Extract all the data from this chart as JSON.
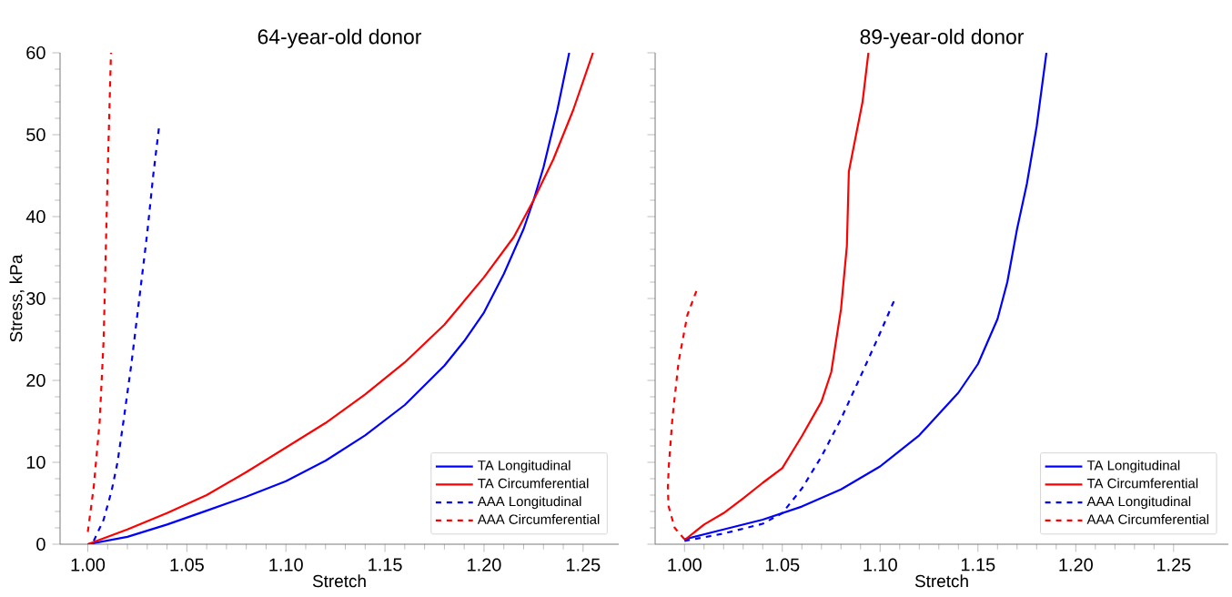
{
  "chart_data": [
    {
      "type": "line",
      "title": "64-year-old donor",
      "xlabel": "Stretch",
      "ylabel": "Stress, kPa",
      "xlim": [
        0.986,
        1.268
      ],
      "ylim": [
        0,
        60
      ],
      "xticks": [
        {
          "value": 1.0,
          "label": "1.00"
        },
        {
          "value": 1.05,
          "label": "1.05"
        },
        {
          "value": 1.1,
          "label": "1.10"
        },
        {
          "value": 1.15,
          "label": "1.15"
        },
        {
          "value": 1.2,
          "label": "1.20"
        },
        {
          "value": 1.25,
          "label": "1.25"
        }
      ],
      "yticks": [
        0,
        10,
        20,
        30,
        40,
        50,
        60
      ],
      "legend": "bottom right",
      "grid": false,
      "series": [
        {
          "name": "TA Longitudinal",
          "color": "#0000ff",
          "line_style": "solid",
          "x": [
            1.0,
            1.02,
            1.04,
            1.06,
            1.08,
            1.1,
            1.12,
            1.14,
            1.16,
            1.18,
            1.19,
            1.2,
            1.21,
            1.22,
            1.225,
            1.23,
            1.237,
            1.243
          ],
          "values": [
            0,
            0.9,
            2.4,
            4.1,
            5.8,
            7.7,
            10.2,
            13.3,
            17,
            21.8,
            24.8,
            28.3,
            33,
            38.5,
            42,
            46,
            53,
            60
          ]
        },
        {
          "name": "TA Circumferential",
          "color": "#ff0000",
          "line_style": "solid",
          "x": [
            1.0,
            1.02,
            1.04,
            1.06,
            1.08,
            1.1,
            1.12,
            1.14,
            1.16,
            1.18,
            1.2,
            1.215,
            1.225,
            1.235,
            1.245,
            1.255
          ],
          "values": [
            0,
            1.8,
            3.8,
            6.0,
            8.8,
            11.8,
            14.8,
            18.3,
            22.2,
            26.8,
            32.6,
            37.5,
            42,
            47,
            53,
            60
          ]
        },
        {
          "name": "AAA Longitudinal",
          "color": "#0000ff",
          "line_style": "dashed",
          "x": [
            1.003,
            1.008,
            1.012,
            1.015,
            1.018,
            1.022,
            1.026,
            1.03,
            1.033,
            1.036
          ],
          "values": [
            0.4,
            3,
            6.5,
            10,
            15,
            22,
            30,
            38,
            45,
            51
          ]
        },
        {
          "name": "AAA Circumferential",
          "color": "#ff0000",
          "line_style": "dashed",
          "x": [
            1.0,
            1.003,
            1.006,
            1.008,
            1.009,
            1.01,
            1.0117
          ],
          "values": [
            1.5,
            7,
            15,
            25,
            35,
            45,
            60
          ]
        }
      ]
    },
    {
      "type": "line",
      "title": "89-year-old donor",
      "xlabel": "Stretch",
      "xlim": [
        0.985,
        1.278
      ],
      "ylim": [
        0,
        60
      ],
      "xticks": [
        {
          "value": 1.0,
          "label": "1.00"
        },
        {
          "value": 1.05,
          "label": "1.05"
        },
        {
          "value": 1.1,
          "label": "1.10"
        },
        {
          "value": 1.15,
          "label": "1.15"
        },
        {
          "value": 1.2,
          "label": "1.20"
        },
        {
          "value": 1.25,
          "label": "1.25"
        }
      ],
      "yticks": [
        0,
        10,
        20,
        30,
        40,
        50,
        60
      ],
      "tick_labels": "x",
      "legend": "bottom right",
      "grid": false,
      "series": [
        {
          "name": "TA Longitudinal",
          "color": "#0000ff",
          "line_style": "solid",
          "x": [
            1.0,
            1.02,
            1.04,
            1.06,
            1.08,
            1.1,
            1.12,
            1.14,
            1.15,
            1.16,
            1.165,
            1.17,
            1.175,
            1.18,
            1.185
          ],
          "values": [
            0.6,
            1.8,
            3.0,
            4.6,
            6.7,
            9.5,
            13.3,
            18.5,
            22,
            27.5,
            32,
            38.5,
            44,
            51,
            60
          ]
        },
        {
          "name": "TA Circumferential",
          "color": "#ff0000",
          "line_style": "solid",
          "x": [
            1.0,
            1.01,
            1.02,
            1.03,
            1.04,
            1.05,
            1.06,
            1.07,
            1.075,
            1.08,
            1.083,
            1.084,
            1.091,
            1.094
          ],
          "values": [
            0.5,
            2.4,
            3.8,
            5.6,
            7.5,
            9.3,
            13.2,
            17.4,
            21,
            28.7,
            36.4,
            45.5,
            54,
            60
          ]
        },
        {
          "name": "AAA Longitudinal",
          "color": "#0000ff",
          "line_style": "dashed",
          "x": [
            1.0,
            1.02,
            1.04,
            1.05,
            1.06,
            1.07,
            1.08,
            1.09,
            1.1,
            1.108
          ],
          "values": [
            0.4,
            1.3,
            2.5,
            3.8,
            6.8,
            10.7,
            15.3,
            20.5,
            25.8,
            30.2
          ]
        },
        {
          "name": "AAA Circumferential",
          "color": "#ff0000",
          "line_style": "dashed",
          "x": [
            1.0,
            0.995,
            0.9918,
            0.9915,
            0.992,
            0.9938,
            0.997,
            1.0015,
            1.007
          ],
          "values": [
            0.6,
            2,
            4.7,
            7,
            9.6,
            15.3,
            22.3,
            28,
            31.5
          ]
        }
      ]
    }
  ]
}
